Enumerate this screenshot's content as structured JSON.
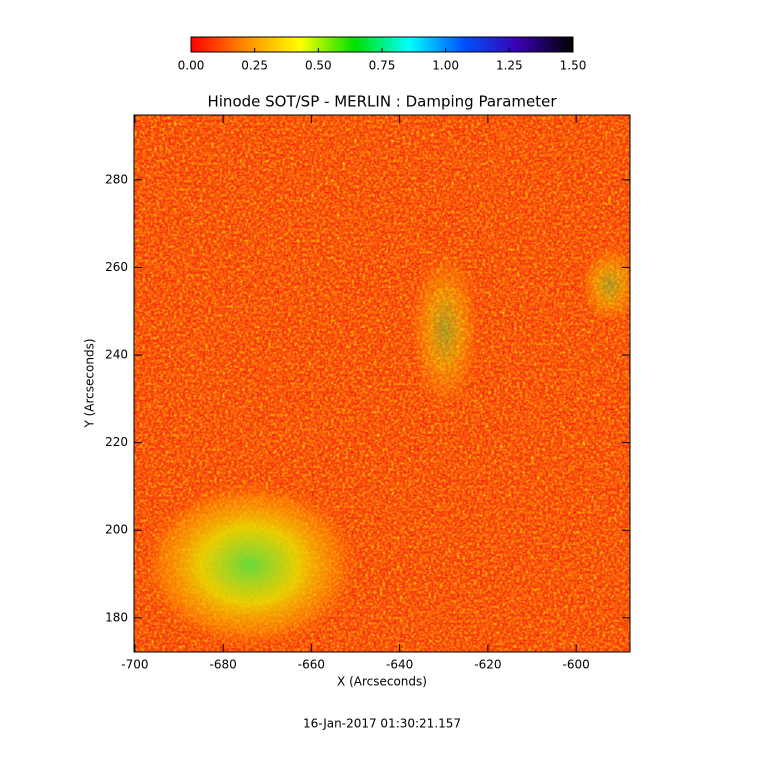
{
  "chart_data": {
    "type": "heatmap",
    "title": "Hinode SOT/SP - MERLIN : Damping Parameter",
    "xlabel": "X (Arcseconds)",
    "ylabel": "Y (Arcseconds)",
    "date": "16-Jan-2017 01:30:21.157",
    "xlim": [
      -700.2,
      -587.8
    ],
    "ylim": [
      172.2,
      294.8
    ],
    "xticks": [
      -700,
      -680,
      -660,
      -640,
      -620,
      -600
    ],
    "yticks": [
      180,
      200,
      220,
      240,
      260,
      280
    ],
    "clim": [
      0,
      1.5
    ],
    "cticks": [
      {
        "value": 0,
        "label": "0.00"
      },
      {
        "value": 0.25,
        "label": "0.25"
      },
      {
        "value": 0.5,
        "label": "0.50"
      },
      {
        "value": 0.75,
        "label": "0.75"
      },
      {
        "value": 1,
        "label": "1.00"
      },
      {
        "value": 1.25,
        "label": "1.25"
      },
      {
        "value": 1.5,
        "label": "1.50"
      }
    ],
    "colormap": [
      "#ff0000",
      "#ff8c00",
      "#ffff00",
      "#00e000",
      "#00ffff",
      "#0050ff",
      "#3a00b0",
      "#000000"
    ]
  }
}
